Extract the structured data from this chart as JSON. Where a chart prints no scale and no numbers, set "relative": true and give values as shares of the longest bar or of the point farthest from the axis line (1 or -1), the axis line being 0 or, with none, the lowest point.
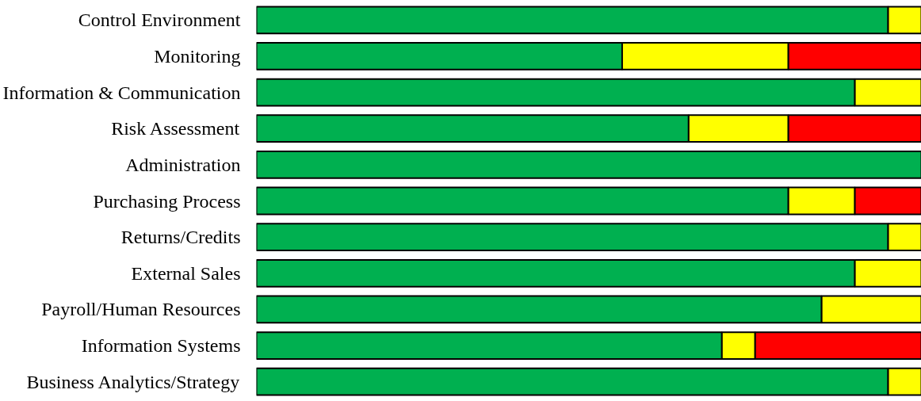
{
  "chart_data": {
    "type": "bar",
    "orientation": "horizontal",
    "stacked": true,
    "relative": true,
    "categories": [
      "Control Environment",
      "Monitoring",
      "Information & Communication",
      "Risk Assessment",
      "Administration",
      "Purchasing Process",
      "Returns/Credits",
      "External Sales",
      "Payroll/Human Resources",
      "Information Systems",
      "Business Analytics/Strategy"
    ],
    "series": [
      {
        "color": "#00b050",
        "values": [
          0.95,
          0.55,
          0.9,
          0.65,
          1.0,
          0.8,
          0.95,
          0.9,
          0.85,
          0.7,
          0.95
        ]
      },
      {
        "color": "#ffff00",
        "values": [
          0.05,
          0.25,
          0.1,
          0.15,
          null,
          0.1,
          0.05,
          0.1,
          0.15,
          0.05,
          0.05
        ]
      },
      {
        "color": "#ff0000",
        "values": [
          null,
          0.2,
          null,
          0.2,
          null,
          0.1,
          null,
          null,
          null,
          0.25,
          null
        ]
      }
    ],
    "grid": false
  }
}
